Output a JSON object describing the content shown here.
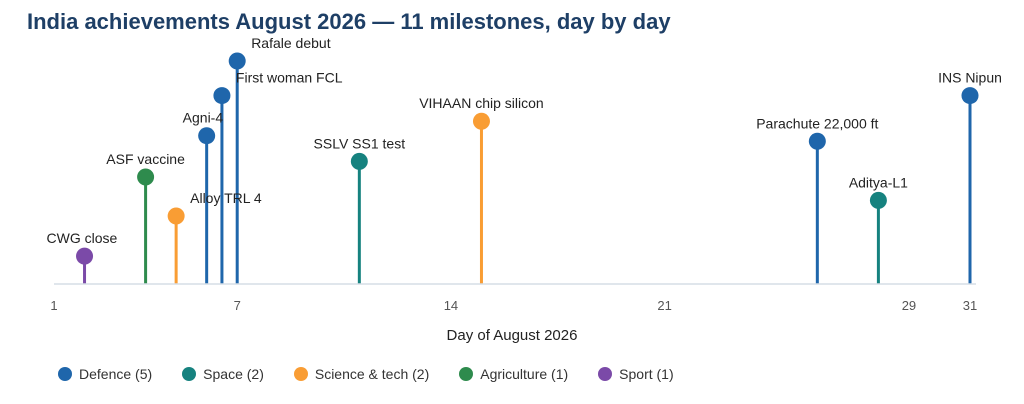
{
  "chart_data": {
    "type": "lollipop",
    "title": "India achievements August 2026 — 11 milestones, day by day",
    "xlabel": "Day of August 2026",
    "ylabel": "",
    "xlim": [
      1,
      31
    ],
    "x_ticks": [
      1,
      7,
      14,
      21,
      29,
      31
    ],
    "grid": false,
    "legend_position": "bottom",
    "categories": [
      {
        "key": "defence",
        "name": "Defence (5)",
        "color": "#1f66ab"
      },
      {
        "key": "space",
        "name": "Space (2)",
        "color": "#16827f"
      },
      {
        "key": "science",
        "name": "Science & tech (2)",
        "color": "#f99d34"
      },
      {
        "key": "agriculture",
        "name": "Agriculture (1)",
        "color": "#2e8b4d"
      },
      {
        "key": "sport",
        "name": "Sport (1)",
        "color": "#7b4aa8"
      }
    ],
    "events": [
      {
        "day": 2,
        "level": 0.125,
        "label": "CWG close",
        "category": "sport"
      },
      {
        "day": 4,
        "level": 0.48,
        "label": "ASF vaccine",
        "category": "agriculture"
      },
      {
        "day": 5,
        "level": 0.305,
        "label": "Alloy TRL 4",
        "category": "science"
      },
      {
        "day": 6,
        "level": 0.665,
        "label": "Agni-4",
        "category": "defence"
      },
      {
        "day": 6.5,
        "level": 0.845,
        "label": "First woman FCL",
        "category": "defence"
      },
      {
        "day": 7,
        "level": 1.0,
        "label": "Rafale debut",
        "category": "defence"
      },
      {
        "day": 11,
        "level": 0.55,
        "label": "SSLV SS1 test",
        "category": "space"
      },
      {
        "day": 15,
        "level": 0.73,
        "label": "VIHAAN chip silicon",
        "category": "science"
      },
      {
        "day": 26,
        "level": 0.64,
        "label": "Parachute 22,000 ft",
        "category": "defence"
      },
      {
        "day": 28,
        "level": 0.375,
        "label": "Aditya-L1",
        "category": "space"
      },
      {
        "day": 31,
        "level": 0.845,
        "label": "INS Nipun",
        "category": "defence"
      }
    ]
  }
}
